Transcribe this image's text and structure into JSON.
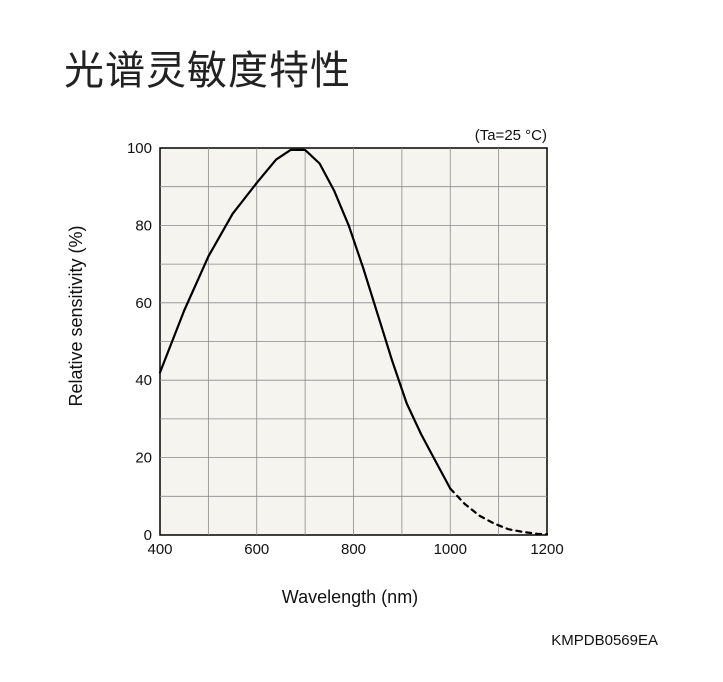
{
  "title": "光谱灵敏度特性",
  "chart_data": {
    "type": "line",
    "title": "光谱灵敏度特性",
    "xlabel": "Wavelength (nm)",
    "ylabel": "Relative sensitivity (%)",
    "condition": "(Ta=25 °C)",
    "code": "KMPDB0569EA",
    "xlim": [
      400,
      1200
    ],
    "ylim": [
      0,
      100
    ],
    "x_ticks": [
      400,
      600,
      800,
      1000,
      1200
    ],
    "y_ticks": [
      0,
      20,
      40,
      60,
      80,
      100
    ],
    "grid": true,
    "background_color": "#f5f4ef",
    "line_color": "#000000",
    "series": [
      {
        "style": "solid",
        "x": [
          400,
          450,
          500,
          550,
          600,
          640,
          670,
          700,
          730,
          760,
          790,
          820,
          850,
          880,
          910,
          940,
          970,
          1000
        ],
        "y": [
          42,
          58,
          72,
          83,
          91,
          97,
          99.5,
          99.5,
          96,
          89,
          80,
          69,
          57,
          45,
          34,
          26,
          19,
          12
        ]
      },
      {
        "style": "dashed",
        "x": [
          1000,
          1030,
          1060,
          1090,
          1120,
          1150,
          1180,
          1200
        ],
        "y": [
          12,
          8,
          5,
          3,
          1.5,
          0.8,
          0.3,
          0.2
        ]
      }
    ]
  }
}
